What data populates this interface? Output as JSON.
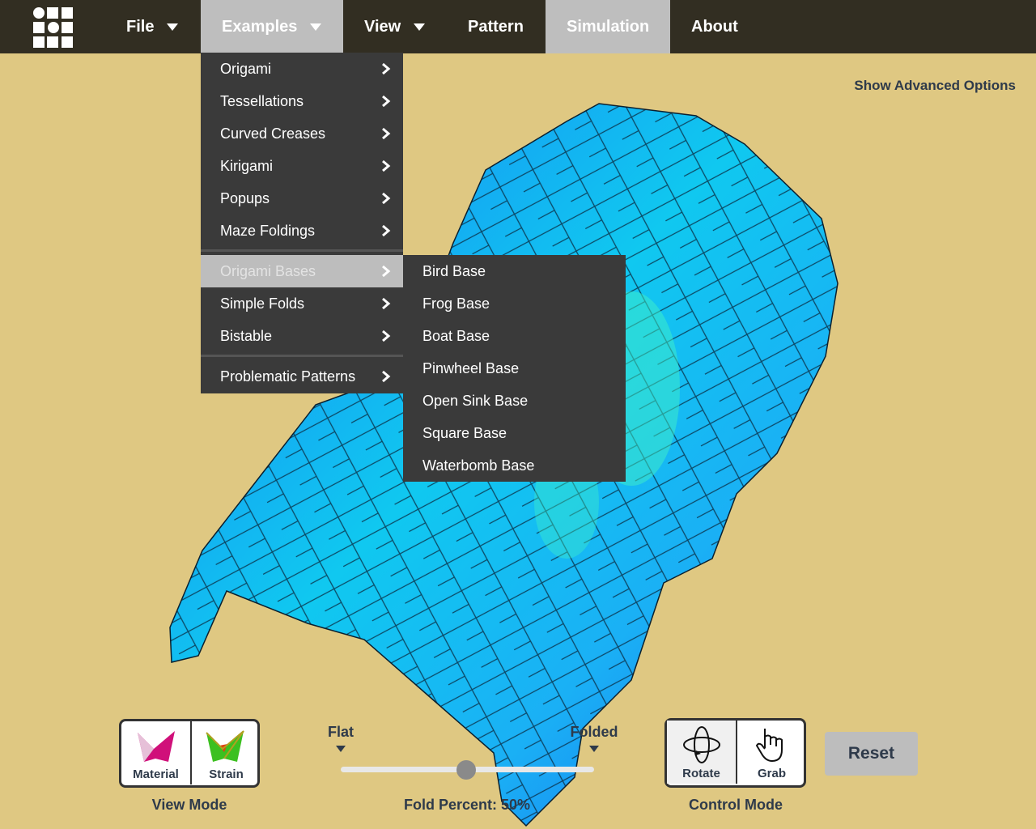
{
  "nav": {
    "items": [
      "File",
      "Examples",
      "View",
      "Pattern",
      "Simulation",
      "About"
    ]
  },
  "examples_menu": {
    "items": [
      "Origami",
      "Tessellations",
      "Curved Creases",
      "Kirigami",
      "Popups",
      "Maze Foldings",
      "Origami Bases",
      "Simple Folds",
      "Bistable",
      "Problematic Patterns"
    ]
  },
  "bases_submenu": {
    "items": [
      "Bird Base",
      "Frog Base",
      "Boat Base",
      "Pinwheel Base",
      "Open Sink Base",
      "Square Base",
      "Waterbomb Base"
    ]
  },
  "advanced_link": "Show Advanced Options",
  "view_mode": {
    "title": "View Mode",
    "buttons": [
      "Material",
      "Strain"
    ]
  },
  "fold_slider": {
    "left_label": "Flat",
    "right_label": "Folded",
    "caption": "Fold Percent: 50%"
  },
  "control_mode": {
    "title": "Control Mode",
    "buttons": [
      "Rotate",
      "Grab"
    ]
  },
  "reset_button": "Reset"
}
